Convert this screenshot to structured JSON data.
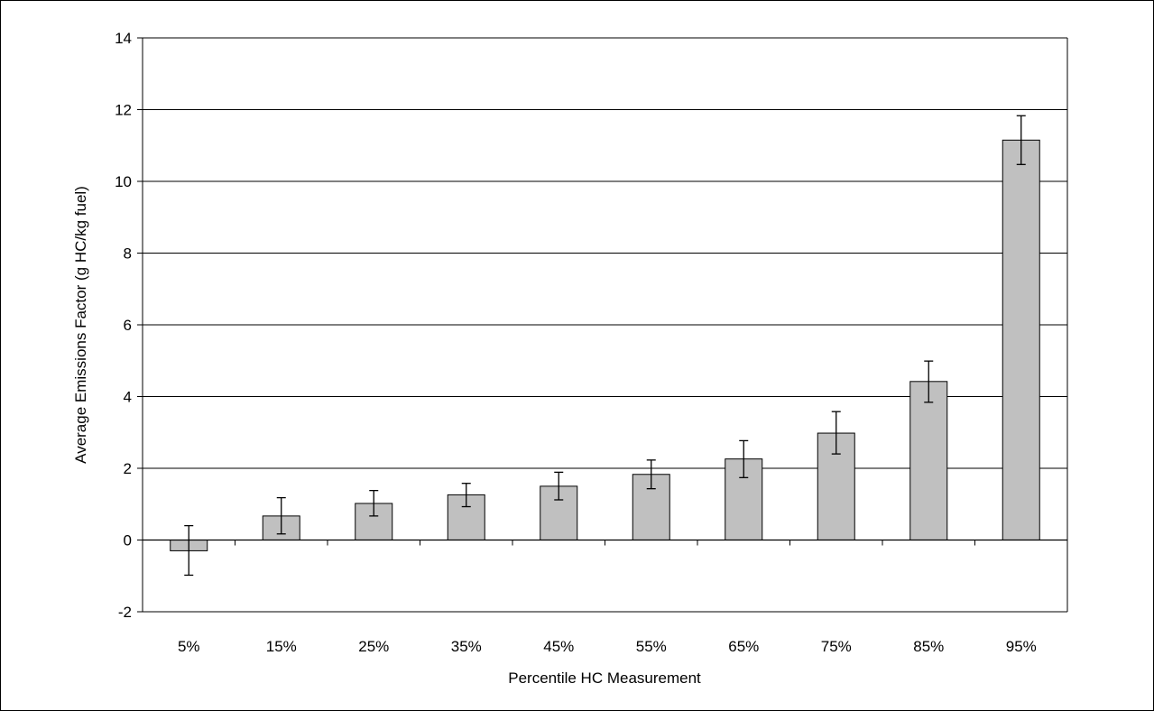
{
  "chart_data": {
    "type": "bar",
    "title": "",
    "xlabel": "Percentile HC Measurement",
    "ylabel": "Average Emissions Factor (g HC/kg fuel)",
    "categories": [
      "5%",
      "15%",
      "25%",
      "35%",
      "45%",
      "55%",
      "65%",
      "75%",
      "85%",
      "95%"
    ],
    "values": [
      -0.3,
      0.67,
      1.02,
      1.26,
      1.5,
      1.83,
      2.26,
      2.98,
      4.42,
      11.15
    ],
    "error_low": [
      -0.98,
      0.17,
      0.67,
      0.93,
      1.12,
      1.43,
      1.74,
      2.4,
      3.84,
      10.47
    ],
    "error_high": [
      0.4,
      1.18,
      1.38,
      1.58,
      1.89,
      2.23,
      2.77,
      3.58,
      4.99,
      11.83
    ],
    "ylim": [
      -2,
      14
    ],
    "yticks": [
      -2,
      0,
      2,
      4,
      6,
      8,
      10,
      12,
      14
    ],
    "grid": true,
    "legend": "none",
    "bar_color": "#c0c0c0",
    "outline_color": "#000000"
  }
}
